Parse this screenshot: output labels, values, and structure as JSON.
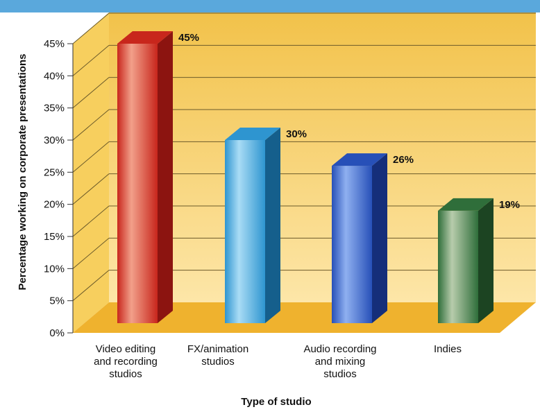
{
  "chart_data": {
    "type": "bar",
    "title": "",
    "xlabel": "Type of studio",
    "ylabel": "Percentage working on corporate presentations",
    "ylim": [
      0,
      45
    ],
    "yticks": [
      "0%",
      "5%",
      "10%",
      "15%",
      "20%",
      "25%",
      "30%",
      "35%",
      "40%",
      "45%"
    ],
    "categories": [
      [
        "Video editing",
        "and recording",
        "studios"
      ],
      [
        "FX/animation",
        "studios"
      ],
      [
        "Audio recording",
        "and mixing",
        "studios"
      ],
      [
        "Indies"
      ]
    ],
    "values": [
      45,
      30,
      26,
      19
    ],
    "value_labels": [
      "45%",
      "30%",
      "26%",
      "19%"
    ],
    "colors": {
      "bars": [
        "#c8261c",
        "#2e95d0",
        "#2750b8",
        "#2f6e3a"
      ],
      "bars_light": [
        "#f2a08a",
        "#a9dcf5",
        "#8fb0f0",
        "#b7ccac"
      ],
      "bars_dark": [
        "#8c1410",
        "#155f8c",
        "#152e7a",
        "#1c4422"
      ],
      "wall_top": "#f2c24a",
      "wall_bottom": "#fde6a8",
      "floor": "#efb22e",
      "frame": "#5aa8dc",
      "grid": "#6b5a2a"
    }
  }
}
